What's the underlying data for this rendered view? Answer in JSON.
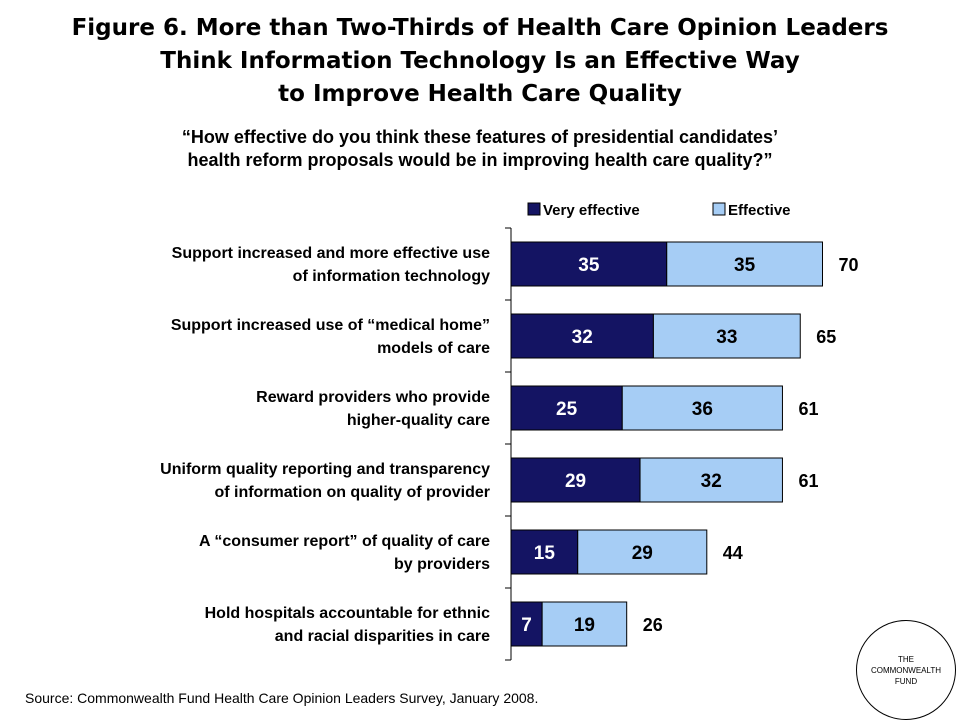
{
  "title_lines": [
    "Figure 6. More than Two-Thirds of Health Care Opinion Leaders",
    "Think Information Technology Is an Effective Way",
    "to Improve Health Care Quality"
  ],
  "subtitle_lines": [
    "“How effective do you think these features of presidential candidates’",
    "health reform proposals would be in improving health care quality?”"
  ],
  "colors": {
    "very_effective": "#141463",
    "effective": "#a6cdf5"
  },
  "chart_data": {
    "type": "bar",
    "orientation": "horizontal",
    "stacked": true,
    "categories": [
      [
        "Support increased and more effective use",
        "of information technology"
      ],
      [
        "Support increased use of “medical home”",
        "models of care"
      ],
      [
        "Reward providers who provide",
        "higher-quality care"
      ],
      [
        "Uniform quality reporting and transparency",
        "of information on quality of provider"
      ],
      [
        "A “consumer report” of quality of care",
        "by providers"
      ],
      [
        "Hold hospitals accountable for ethnic",
        "and racial disparities in care"
      ]
    ],
    "series": [
      {
        "name": "Very effective",
        "values": [
          35,
          32,
          25,
          29,
          15,
          7
        ]
      },
      {
        "name": "Effective",
        "values": [
          35,
          33,
          36,
          32,
          29,
          19
        ]
      }
    ],
    "totals": [
      70,
      65,
      61,
      61,
      44,
      26
    ],
    "legend_position": "top",
    "grid": false
  },
  "source": "Source: Commonwealth Fund Health Care Opinion Leaders Survey, January 2008.",
  "logo_lines": [
    "THE",
    "COMMONWEALTH",
    "FUND"
  ]
}
